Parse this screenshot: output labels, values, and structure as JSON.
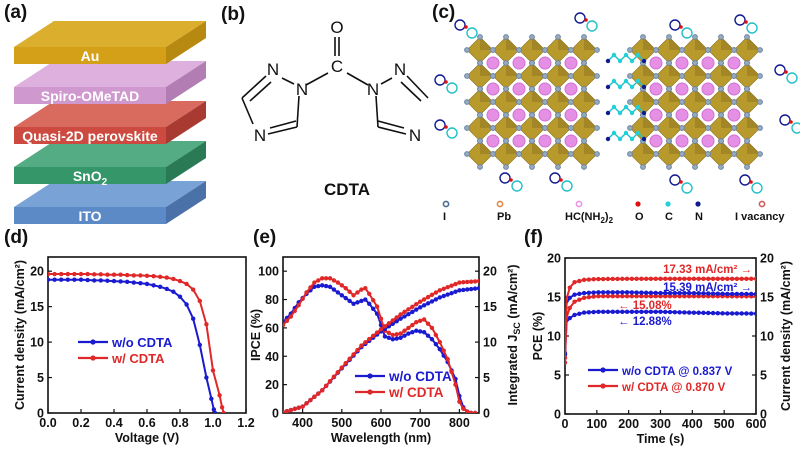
{
  "panels": {
    "a": {
      "label": "(a)",
      "layers": [
        {
          "name": "Au",
          "color": "#d4a017",
          "side": "#b88910",
          "top": "#dcae2e"
        },
        {
          "name": "Spiro-OMeTAD",
          "color": "#cf98cf",
          "side": "#b27db2",
          "top": "#ddb0dd"
        },
        {
          "name": "Quasi-2D perovskite",
          "color": "#cc4a3f",
          "side": "#a83a31",
          "top": "#d86a5e"
        },
        {
          "name": "SnO",
          "sub": "2",
          "color": "#35966a",
          "side": "#2a7a56",
          "top": "#54ac84"
        },
        {
          "name": "ITO",
          "color": "#5b8ac6",
          "side": "#4a72a8",
          "top": "#79a2d6"
        }
      ]
    },
    "b": {
      "label": "(b)",
      "molecule_name": "CDTA",
      "atoms": {
        "O": "O",
        "C": "C",
        "N": "N"
      }
    },
    "c": {
      "label": "(c)",
      "legend": [
        {
          "label": "I",
          "color": "#4d6d92",
          "style": "ring"
        },
        {
          "label": "Pb",
          "color": "#e08a50",
          "style": "ring"
        },
        {
          "label": "HC(NH",
          "sub": "2",
          "after": ")",
          "sub2": "2",
          "color": "#e896e8",
          "style": "ring"
        },
        {
          "label": "O",
          "color": "#e01010",
          "style": "dot"
        },
        {
          "label": "C",
          "color": "#22d0d8",
          "style": "dot"
        },
        {
          "label": "N",
          "color": "#101a90",
          "style": "dot"
        },
        {
          "label": "I vacancy",
          "color": "#d06060",
          "style": "ring"
        }
      ],
      "colors": {
        "octahedron": "#b89a2c",
        "octahedron_dark": "#8a7220",
        "iodide": "#6a86a8",
        "cation": "#e58fe5"
      }
    }
  },
  "chart_data": [
    {
      "id": "d",
      "label": "(d)",
      "type": "line",
      "xlabel": "Voltage (V)",
      "ylabel": "Current density (mA/cm²)",
      "xlim": [
        0.0,
        1.2
      ],
      "ylim": [
        0,
        22
      ],
      "xticks": [
        "0.0",
        "0.2",
        "0.4",
        "0.6",
        "0.8",
        "1.0",
        "1.2"
      ],
      "yticks": [
        "0",
        "5",
        "10",
        "15",
        "20"
      ],
      "legend": "center-left",
      "series": [
        {
          "name": "w/o CDTA",
          "color": "#1a1ad0",
          "x": [
            0,
            0.04,
            0.08,
            0.12,
            0.16,
            0.2,
            0.24,
            0.28,
            0.32,
            0.36,
            0.4,
            0.44,
            0.48,
            0.52,
            0.56,
            0.6,
            0.64,
            0.68,
            0.72,
            0.76,
            0.8,
            0.84,
            0.88,
            0.92,
            0.96,
            0.99,
            1.005,
            1.013
          ],
          "y": [
            18.8,
            18.8,
            18.8,
            18.8,
            18.8,
            18.8,
            18.75,
            18.7,
            18.7,
            18.65,
            18.6,
            18.55,
            18.5,
            18.4,
            18.3,
            18.2,
            18.0,
            17.8,
            17.5,
            17.1,
            16.4,
            15.3,
            13.3,
            9.6,
            5.0,
            2.0,
            0.5,
            0
          ]
        },
        {
          "name": "w/ CDTA",
          "color": "#e02828",
          "x": [
            0,
            0.04,
            0.08,
            0.12,
            0.16,
            0.2,
            0.24,
            0.28,
            0.32,
            0.36,
            0.4,
            0.44,
            0.48,
            0.52,
            0.56,
            0.6,
            0.64,
            0.68,
            0.72,
            0.76,
            0.8,
            0.84,
            0.88,
            0.92,
            0.96,
            1.0,
            1.04,
            1.055,
            1.065
          ],
          "y": [
            19.6,
            19.6,
            19.6,
            19.6,
            19.6,
            19.6,
            19.6,
            19.55,
            19.55,
            19.5,
            19.5,
            19.5,
            19.45,
            19.4,
            19.4,
            19.35,
            19.3,
            19.2,
            19.1,
            18.9,
            18.6,
            18.2,
            17.4,
            15.8,
            12.5,
            6.0,
            2.5,
            0.8,
            0
          ]
        }
      ]
    },
    {
      "id": "e",
      "label": "(e)",
      "type": "line",
      "xlabel": "Wavelength (nm)",
      "ylabel": "IPCE (%)",
      "y2label": "Integrated J",
      "y2label_sub": "SC",
      "y2label_unit": " (mA/cm²)",
      "xlim": [
        350,
        850
      ],
      "ylim": [
        0,
        110
      ],
      "y2lim": [
        0,
        22
      ],
      "xticks": [
        "400",
        "500",
        "600",
        "700",
        "800"
      ],
      "yticks": [
        "0",
        "20",
        "40",
        "60",
        "80",
        "100"
      ],
      "y2ticks": [
        "0",
        "5",
        "10",
        "15",
        "20"
      ],
      "legend": "bottom-right",
      "series": [
        {
          "name": "w/o CDTA",
          "axis": "left",
          "color": "#1a1ad0",
          "x": [
            350,
            370,
            390,
            410,
            430,
            450,
            470,
            490,
            510,
            530,
            550,
            560,
            570,
            590,
            610,
            630,
            650,
            670,
            690,
            710,
            730,
            750,
            770,
            790,
            800,
            810,
            820,
            830,
            840
          ],
          "y": [
            64,
            70,
            78,
            84,
            89,
            90,
            89,
            85,
            81,
            77,
            79,
            80,
            77,
            70,
            54,
            52,
            53,
            56,
            58,
            57,
            52,
            45,
            36,
            24,
            12,
            4,
            1,
            0,
            0
          ]
        },
        {
          "name": "w/ CDTA",
          "axis": "left",
          "color": "#e02828",
          "x": [
            350,
            370,
            390,
            410,
            430,
            450,
            470,
            490,
            510,
            530,
            550,
            560,
            570,
            590,
            610,
            630,
            650,
            670,
            690,
            710,
            730,
            750,
            770,
            790,
            800,
            810,
            820,
            830,
            840
          ],
          "y": [
            62,
            68,
            76,
            85,
            92,
            95,
            95,
            92,
            88,
            83,
            87,
            88,
            84,
            75,
            58,
            55,
            56,
            60,
            64,
            66,
            60,
            50,
            38,
            20,
            8,
            3,
            1,
            0,
            0
          ]
        },
        {
          "name": "w/o CDTA",
          "axis": "right",
          "color": "#1a1ad0",
          "x": [
            350,
            400,
            450,
            500,
            550,
            600,
            650,
            700,
            750,
            800,
            850
          ],
          "y": [
            0.1,
            0.9,
            3.2,
            6.3,
            9.3,
            11.5,
            13.3,
            14.9,
            16.3,
            17.3,
            17.6
          ]
        },
        {
          "name": "w/ CDTA",
          "axis": "right",
          "color": "#e02828",
          "x": [
            350,
            400,
            450,
            500,
            550,
            600,
            650,
            700,
            750,
            800,
            850
          ],
          "y": [
            0.1,
            0.9,
            3.2,
            6.4,
            9.5,
            11.8,
            13.9,
            15.7,
            17.3,
            18.4,
            18.6
          ]
        }
      ]
    },
    {
      "id": "f",
      "label": "(f)",
      "type": "line",
      "xlabel": "Time (s)",
      "ylabel": "PCE (%)",
      "y2label": "Current density (mA/cm²)",
      "xlim": [
        0,
        600
      ],
      "ylim": [
        0,
        20
      ],
      "y2lim": [
        0,
        20
      ],
      "xticks": [
        "0",
        "100",
        "200",
        "300",
        "400",
        "500",
        "600"
      ],
      "yticks": [
        "0",
        "5",
        "10",
        "15",
        "20"
      ],
      "y2ticks": [
        "0",
        "5",
        "10",
        "15",
        "20"
      ],
      "legend": "bottom-center",
      "annotations": [
        {
          "text": "17.33 mA/cm² →",
          "color": "#e02828"
        },
        {
          "text": "15.39 mA/cm² →",
          "color": "#1a1ad0"
        },
        {
          "text": "← 15.08%",
          "color": "#e02828"
        },
        {
          "text": "← 12.88%",
          "color": "#1a1ad0"
        }
      ],
      "series": [
        {
          "name": "w/o CDTA @ 0.837 V",
          "kind": "PCE",
          "color": "#1a1ad0",
          "x": [
            0,
            5,
            15,
            30,
            60,
            100,
            200,
            300,
            400,
            500,
            600
          ],
          "y": [
            7.6,
            11.8,
            12.3,
            12.7,
            13.0,
            13.1,
            13.1,
            13.1,
            13.0,
            12.9,
            12.88
          ]
        },
        {
          "name": "w/ CDTA @ 0.870 V",
          "kind": "PCE",
          "color": "#e02828",
          "x": [
            0,
            5,
            15,
            30,
            60,
            100,
            200,
            300,
            400,
            500,
            600
          ],
          "y": [
            6.6,
            12.4,
            13.6,
            14.4,
            14.9,
            15.1,
            15.1,
            15.1,
            15.1,
            15.1,
            15.08
          ]
        },
        {
          "name": "w/o CDTA @ 0.837 V",
          "kind": "Jsc",
          "color": "#1a1ad0",
          "x": [
            0,
            5,
            15,
            30,
            60,
            100,
            200,
            300,
            400,
            500,
            600
          ],
          "y": [
            7.8,
            14.2,
            14.9,
            15.3,
            15.5,
            15.6,
            15.6,
            15.5,
            15.5,
            15.4,
            15.39
          ]
        },
        {
          "name": "w/ CDTA @ 0.870 V",
          "kind": "Jsc",
          "color": "#e02828",
          "x": [
            0,
            5,
            15,
            30,
            60,
            100,
            200,
            300,
            400,
            500,
            600
          ],
          "y": [
            7.2,
            14.8,
            16.2,
            16.9,
            17.2,
            17.3,
            17.33,
            17.33,
            17.33,
            17.33,
            17.33
          ]
        }
      ]
    }
  ]
}
